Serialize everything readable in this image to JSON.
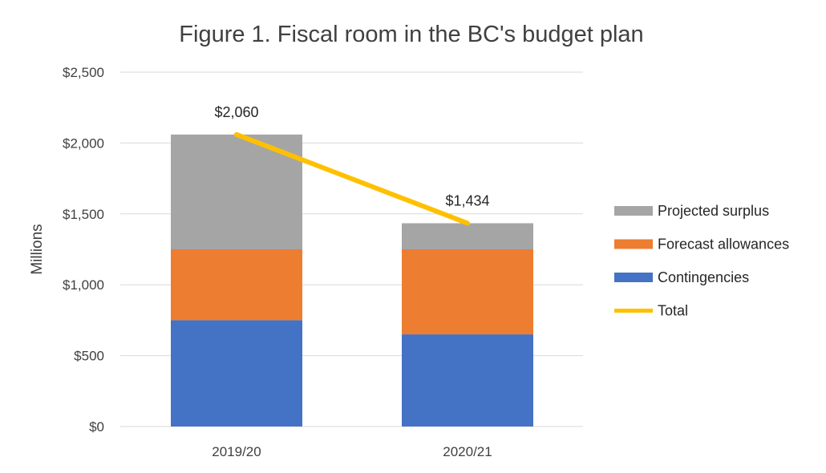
{
  "chart_data": {
    "type": "bar",
    "stacked": true,
    "title": "Figure 1. Fiscal room in the BC's budget plan",
    "xlabel": "",
    "ylabel": "Millions",
    "categories": [
      "2019/20",
      "2020/21"
    ],
    "series": [
      {
        "name": "Contingencies",
        "type": "bar",
        "color": "#4472C4",
        "values": [
          750,
          650
        ]
      },
      {
        "name": "Forecast allowances",
        "type": "bar",
        "color": "#ED7D31",
        "values": [
          500,
          600
        ]
      },
      {
        "name": "Projected surplus",
        "type": "bar",
        "color": "#A5A5A5",
        "values": [
          810,
          184
        ]
      },
      {
        "name": "Total",
        "type": "line",
        "color": "#FFC000",
        "values": [
          2060,
          1434
        ]
      }
    ],
    "data_labels": [
      "$2,060",
      "$1,434"
    ],
    "ylim": [
      0,
      2500
    ],
    "yticks": [
      0,
      500,
      1000,
      1500,
      2000,
      2500
    ],
    "ytick_labels": [
      "$0",
      "$500",
      "$1,000",
      "$1,500",
      "$2,000",
      "$2,500"
    ],
    "grid": true,
    "legend_position": "right",
    "legend_order": [
      "Projected surplus",
      "Forecast allowances",
      "Contingencies",
      "Total"
    ]
  }
}
